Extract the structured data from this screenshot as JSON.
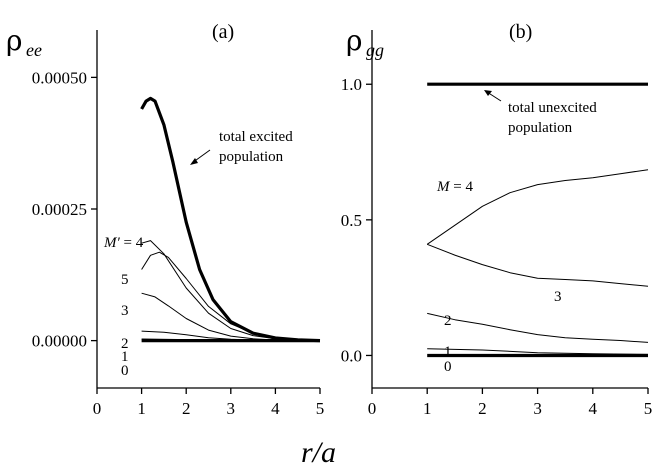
{
  "chart_data": [
    {
      "type": "line",
      "panel_label": "(a)",
      "ylabel_main": "ρ",
      "ylabel_sub": "ee",
      "xlim": [
        0,
        5
      ],
      "ylim": [
        -9e-05,
        0.00059
      ],
      "xticks": [
        0,
        1,
        2,
        3,
        4,
        5
      ],
      "yticks": [
        {
          "v": 0.0,
          "label": "0.00000"
        },
        {
          "v": 0.00025,
          "label": "0.00025"
        },
        {
          "v": 0.0005,
          "label": "0.00050"
        }
      ],
      "series": [
        {
          "name": "total excited population",
          "bold": true,
          "x": [
            1.0,
            1.1,
            1.2,
            1.3,
            1.5,
            1.7,
            2.0,
            2.3,
            2.6,
            3.0,
            3.5,
            4.0,
            4.5,
            5.0
          ],
          "y": [
            0.00044,
            0.000455,
            0.00046,
            0.000455,
            0.00041,
            0.00034,
            0.000225,
            0.000135,
            7.8e-05,
            3.6e-05,
            1.4e-05,
            5e-06,
            1.5e-06,
            0.0
          ]
        },
        {
          "name": "4",
          "x": [
            1.0,
            1.2,
            1.5,
            2.0,
            2.5,
            3.0,
            3.5,
            4.0,
            4.5,
            5.0
          ],
          "y": [
            0.000185,
            0.00019,
            0.000165,
            0.0001,
            5.2e-05,
            2.3e-05,
            9.5e-06,
            3.5e-06,
            1e-06,
            0.0
          ]
        },
        {
          "name": "5",
          "x": [
            1.0,
            1.2,
            1.4,
            1.6,
            2.0,
            2.5,
            3.0,
            3.5,
            4.0,
            4.5,
            5.0
          ],
          "y": [
            0.000135,
            0.000162,
            0.000168,
            0.000158,
            0.000118,
            6.5e-05,
            3.2e-05,
            1.4e-05,
            5e-06,
            1.5e-06,
            0.0
          ]
        },
        {
          "name": "3",
          "x": [
            1.0,
            1.3,
            1.6,
            2.0,
            2.5,
            3.0,
            3.5,
            4.0,
            4.5,
            5.0
          ],
          "y": [
            9e-05,
            8.3e-05,
            6.6e-05,
            4.2e-05,
            2e-05,
            8.5e-06,
            3.5e-06,
            1.2e-06,
            4e-07,
            0.0
          ]
        },
        {
          "name": "2",
          "x": [
            1.0,
            1.5,
            2.0,
            2.5,
            3.0,
            3.5,
            4.0,
            5.0
          ],
          "y": [
            1.8e-05,
            1.6e-05,
            1.1e-05,
            5.5e-06,
            2.5e-06,
            1e-06,
            4e-07,
            0.0
          ]
        },
        {
          "name": "1",
          "x": [
            1.0,
            2.0,
            3.0,
            4.0,
            5.0
          ],
          "y": [
            3e-06,
            2e-06,
            1e-06,
            3e-07,
            0.0
          ]
        },
        {
          "name": "0",
          "bold": true,
          "x": [
            1.0,
            5.0
          ],
          "y": [
            0.0,
            0.0
          ]
        }
      ],
      "annotations": {
        "total_line1": "total excited",
        "total_line2": "population",
        "m_prefix": "M′",
        "m_eq": " = 4",
        "n5": "5",
        "n3": "3",
        "n2": "2",
        "n1": "1",
        "n0": "0"
      }
    },
    {
      "type": "line",
      "panel_label": "(b)",
      "ylabel_main": "ρ",
      "ylabel_sub": "gg",
      "xlim": [
        0,
        5
      ],
      "ylim": [
        -0.12,
        1.2
      ],
      "xticks": [
        0,
        1,
        2,
        3,
        4,
        5
      ],
      "yticks": [
        {
          "v": 0.0,
          "label": "0.0"
        },
        {
          "v": 0.5,
          "label": "0.5"
        },
        {
          "v": 1.0,
          "label": "1.0"
        }
      ],
      "series": [
        {
          "name": "total unexcited population",
          "bold": true,
          "x": [
            1.0,
            5.0
          ],
          "y": [
            1.0,
            1.0
          ]
        },
        {
          "name": "4",
          "x": [
            1.0,
            1.5,
            2.0,
            2.5,
            3.0,
            3.5,
            4.0,
            4.5,
            5.0
          ],
          "y": [
            0.41,
            0.48,
            0.55,
            0.6,
            0.63,
            0.645,
            0.655,
            0.67,
            0.685
          ]
        },
        {
          "name": "3",
          "x": [
            1.0,
            1.5,
            2.0,
            2.5,
            3.0,
            3.5,
            4.0,
            4.5,
            5.0
          ],
          "y": [
            0.41,
            0.37,
            0.335,
            0.305,
            0.285,
            0.28,
            0.275,
            0.265,
            0.255
          ]
        },
        {
          "name": "2",
          "x": [
            1.0,
            1.5,
            2.0,
            2.5,
            3.0,
            3.5,
            4.0,
            4.5,
            5.0
          ],
          "y": [
            0.155,
            0.132,
            0.115,
            0.095,
            0.077,
            0.065,
            0.06,
            0.055,
            0.048
          ]
        },
        {
          "name": "1",
          "x": [
            1.0,
            2.0,
            3.0,
            4.0,
            5.0
          ],
          "y": [
            0.025,
            0.02,
            0.01,
            0.006,
            0.004
          ]
        },
        {
          "name": "0",
          "bold": true,
          "x": [
            1.0,
            5.0
          ],
          "y": [
            0.0,
            0.0
          ]
        }
      ],
      "annotations": {
        "total_line1": "total unexcited",
        "total_line2": "population",
        "m_prefix": "M",
        "m_eq": " = 4",
        "n3": "3",
        "n2": "2",
        "n1": "1",
        "n0": "0"
      }
    }
  ],
  "xlabel": "r/a"
}
